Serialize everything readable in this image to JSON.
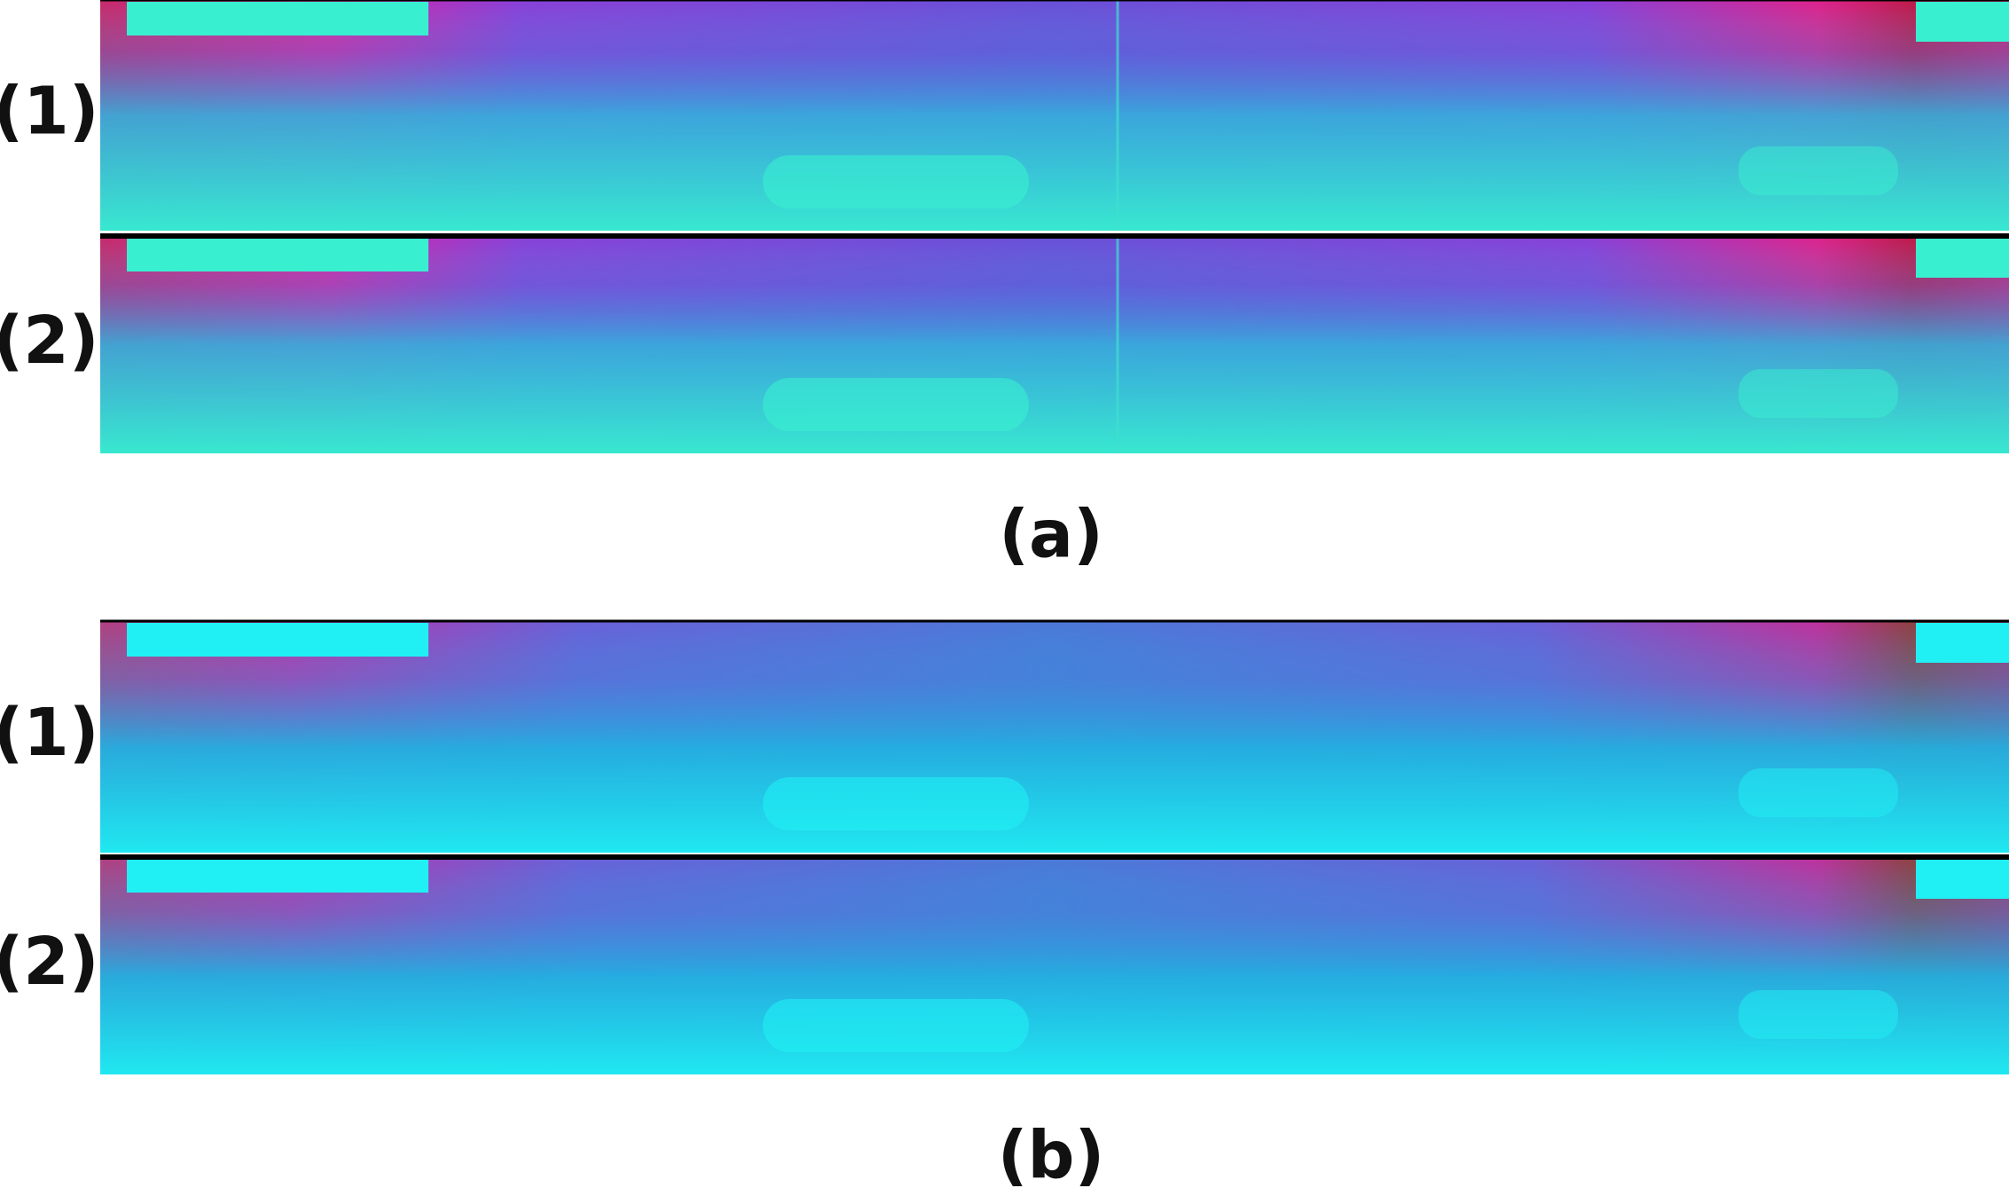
{
  "panels": [
    {
      "caption": "(a)",
      "rows": [
        {
          "label": "(1)"
        },
        {
          "label": "(2)"
        }
      ]
    },
    {
      "caption": "(b)",
      "rows": [
        {
          "label": "(1)"
        },
        {
          "label": "(2)"
        }
      ]
    }
  ]
}
